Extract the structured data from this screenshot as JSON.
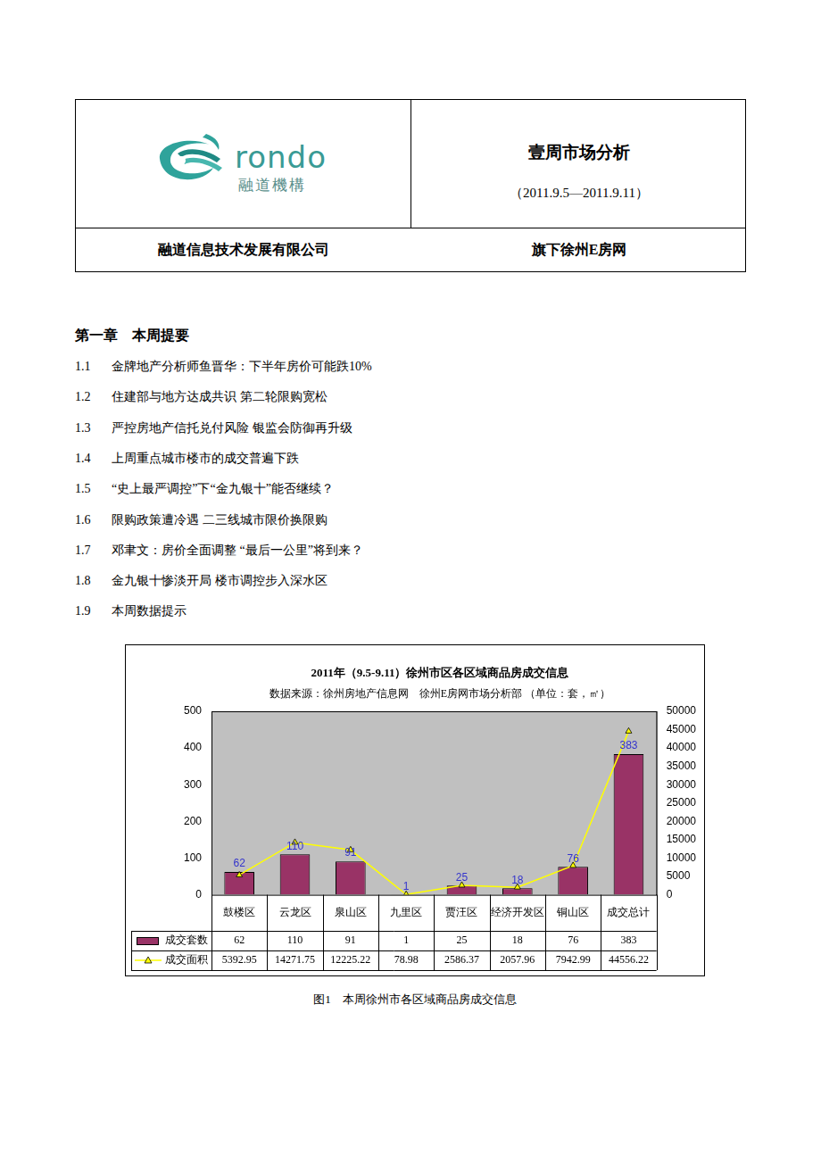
{
  "header": {
    "logo": {
      "text": "rondo",
      "subtext": "融道機構"
    },
    "title": "壹周市场分析",
    "period": "（2011.9.5—2011.9.11）",
    "company": "融道信息技术发展有限公司",
    "site": "旗下徐州E房网"
  },
  "chapter": {
    "title": "第一章　本周提要",
    "items": [
      {
        "number": "1.1",
        "text": "金牌地产分析师鱼晋华：下半年房价可能跌10%"
      },
      {
        "number": "1.2",
        "text": "住建部与地方达成共识 第二轮限购宽松"
      },
      {
        "number": "1.3",
        "text": "严控房地产信托兑付风险 银监会防御再升级"
      },
      {
        "number": "1.4",
        "text": "上周重点城市楼市的成交普遍下跌"
      },
      {
        "number": "1.5",
        "text": "“史上最严调控”下“金九银十”能否继续？"
      },
      {
        "number": "1.6",
        "text": "限购政策遭冷遇 二三线城市限价换限购"
      },
      {
        "number": "1.7",
        "text": "邓聿文：房价全面调整 “最后一公里”将到来？"
      },
      {
        "number": "1.8",
        "text": "金九银十惨淡开局 楼市调控步入深水区"
      },
      {
        "number": "1.9",
        "text": "本周数据提示"
      }
    ]
  },
  "chart_data": {
    "type": "bar",
    "title": "2011年（9.5-9.11）徐州市区各区域商品房成交信息",
    "subtitle": "数据来源：徐州房地产信息网　徐州E房网市场分析部 （单位：套，㎡）",
    "categories": [
      "鼓楼区",
      "云龙区",
      "泉山区",
      "九里区",
      "贾汪区",
      "经济开发区",
      "铜山区",
      "成交总计"
    ],
    "series": [
      {
        "name": "成交套数",
        "type": "bar",
        "color": "#993366",
        "data_labels": true,
        "values": [
          62,
          110,
          91,
          1,
          25,
          18,
          76,
          383
        ]
      },
      {
        "name": "成交面积",
        "type": "line",
        "color": "#ffff00",
        "marker": "triangle",
        "line_style": "solid",
        "axis": "y2",
        "values": [
          5392.95,
          14271.75,
          12225.22,
          78.98,
          2586.37,
          2057.96,
          7942.99,
          44556.22
        ]
      }
    ],
    "ylim": [
      0,
      500
    ],
    "yticks": [
      0,
      100,
      200,
      300,
      400,
      500
    ],
    "y2lim": [
      0,
      50000
    ],
    "y2ticks": [
      0,
      5000,
      10000,
      15000,
      20000,
      25000,
      30000,
      35000,
      40000,
      45000,
      50000
    ],
    "grid": false
  },
  "caption": "图1　本周徐州市各区域商品房成交信息"
}
